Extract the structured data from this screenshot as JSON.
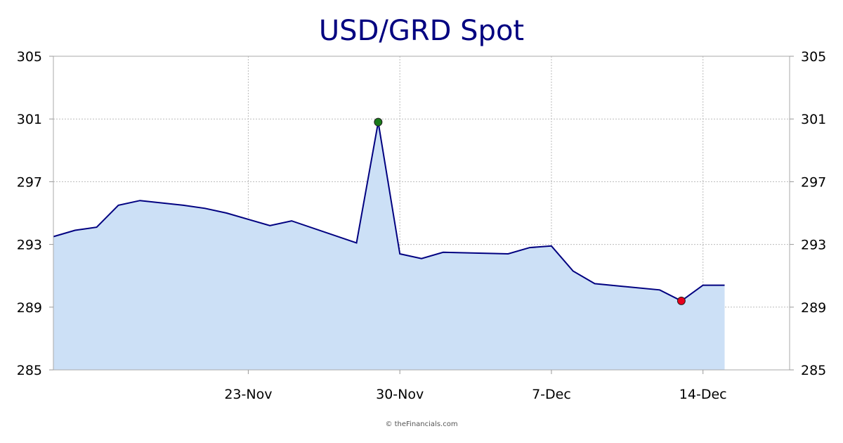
{
  "colors": {
    "title": "#000080",
    "line": "#000080",
    "fill": "#cce0f6",
    "grid": "#bbbbbb",
    "high_marker": "#1a7a1a",
    "low_marker": "#e8001c"
  },
  "chart_data": {
    "type": "area",
    "title": "USD/GRD Spot",
    "xlabel": "",
    "ylabel": "",
    "ylim": [
      285,
      305
    ],
    "xlim": [
      "2020-11-14",
      "2020-12-18"
    ],
    "y_ticks": [
      285,
      289,
      293,
      297,
      301,
      305
    ],
    "x_ticks": [
      {
        "date": "2020-11-23",
        "label": "23-Nov"
      },
      {
        "date": "2020-11-30",
        "label": "30-Nov"
      },
      {
        "date": "2020-12-07",
        "label": "7-Dec"
      },
      {
        "date": "2020-12-14",
        "label": "14-Dec"
      }
    ],
    "grid": true,
    "series": [
      {
        "points": [
          {
            "x": "2020-11-14",
            "y": 293.5
          },
          {
            "x": "2020-11-15",
            "y": 293.9
          },
          {
            "x": "2020-11-16",
            "y": 294.1
          },
          {
            "x": "2020-11-17",
            "y": 295.5
          },
          {
            "x": "2020-11-18",
            "y": 295.8
          },
          {
            "x": "2020-11-20",
            "y": 295.5
          },
          {
            "x": "2020-11-21",
            "y": 295.3
          },
          {
            "x": "2020-11-22",
            "y": 295.0
          },
          {
            "x": "2020-11-23",
            "y": 294.6
          },
          {
            "x": "2020-11-24",
            "y": 294.2
          },
          {
            "x": "2020-11-25",
            "y": 294.5
          },
          {
            "x": "2020-11-28",
            "y": 293.1
          },
          {
            "x": "2020-11-29",
            "y": 300.8
          },
          {
            "x": "2020-11-30",
            "y": 292.4
          },
          {
            "x": "2020-12-01",
            "y": 292.1
          },
          {
            "x": "2020-12-02",
            "y": 292.5
          },
          {
            "x": "2020-12-05",
            "y": 292.4
          },
          {
            "x": "2020-12-06",
            "y": 292.8
          },
          {
            "x": "2020-12-07",
            "y": 292.9
          },
          {
            "x": "2020-12-08",
            "y": 291.3
          },
          {
            "x": "2020-12-09",
            "y": 290.5
          },
          {
            "x": "2020-12-12",
            "y": 290.1
          },
          {
            "x": "2020-12-13",
            "y": 289.4
          },
          {
            "x": "2020-12-14",
            "y": 290.4
          },
          {
            "x": "2020-12-15",
            "y": 290.4
          }
        ]
      }
    ],
    "markers": {
      "high": {
        "x": "2020-11-29",
        "y": 300.8
      },
      "low": {
        "x": "2020-12-13",
        "y": 289.4
      }
    }
  },
  "credit": "© theFinancials.com"
}
